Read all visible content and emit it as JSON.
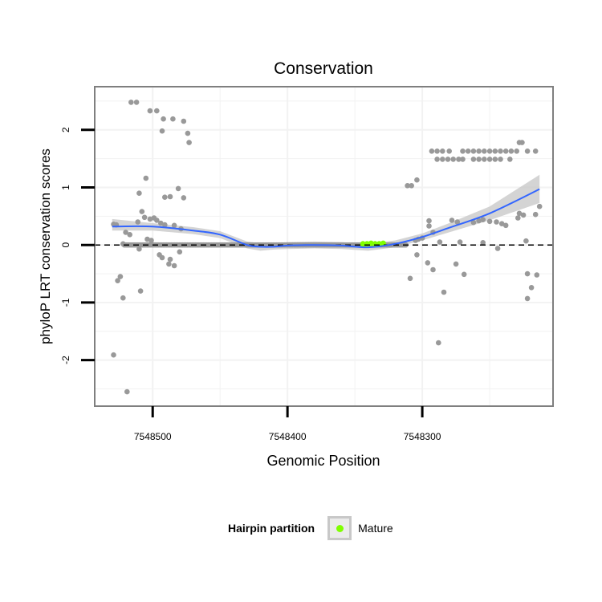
{
  "colors": {
    "points": "#999999",
    "smooth_line": "#3366ff",
    "ribbon": "#c6c6c6",
    "mature": "#7fff00",
    "panel_border": "#7f7f7f",
    "grid": "#f2f2f2"
  },
  "legend": {
    "title": "Hairpin partition",
    "label": "Mature"
  },
  "chart_data": {
    "type": "scatter",
    "title": "Conservation",
    "xlabel": "Genomic Position",
    "ylabel": "phyloP LRT conservation scores",
    "x_reversed": true,
    "xlim": [
      7548543,
      7548203
    ],
    "ylim": [
      -2.8,
      2.75
    ],
    "x_ticks": [
      7548500,
      7548400,
      7548300
    ],
    "x_tick_labels": [
      "7548500",
      "7548400",
      "7548300"
    ],
    "y_ticks": [
      2,
      1,
      0,
      -1,
      -2
    ],
    "y_tick_labels": [
      "2",
      "1",
      "0",
      "-1",
      "-2"
    ],
    "grid": true,
    "reference_line": {
      "y": 0,
      "style": "dashed"
    },
    "series": [
      {
        "name": "scores",
        "points": [
          {
            "x": 7548516,
            "y": 2.48
          },
          {
            "x": 7548512,
            "y": 2.48
          },
          {
            "x": 7548502,
            "y": 2.33
          },
          {
            "x": 7548497,
            "y": 2.33
          },
          {
            "x": 7548492,
            "y": 2.19
          },
          {
            "x": 7548485,
            "y": 2.19
          },
          {
            "x": 7548477,
            "y": 2.15
          },
          {
            "x": 7548493,
            "y": 1.98
          },
          {
            "x": 7548474,
            "y": 1.94
          },
          {
            "x": 7548473,
            "y": 1.78
          },
          {
            "x": 7548505,
            "y": 1.16
          },
          {
            "x": 7548510,
            "y": 0.9
          },
          {
            "x": 7548481,
            "y": 0.98
          },
          {
            "x": 7548491,
            "y": 0.83
          },
          {
            "x": 7548487,
            "y": 0.84
          },
          {
            "x": 7548477,
            "y": 0.82
          },
          {
            "x": 7548508,
            "y": 0.58
          },
          {
            "x": 7548506,
            "y": 0.48
          },
          {
            "x": 7548502,
            "y": 0.45
          },
          {
            "x": 7548499,
            "y": 0.47
          },
          {
            "x": 7548497,
            "y": 0.43
          },
          {
            "x": 7548494,
            "y": 0.38
          },
          {
            "x": 7548491,
            "y": 0.35
          },
          {
            "x": 7548484,
            "y": 0.34
          },
          {
            "x": 7548479,
            "y": 0.28
          },
          {
            "x": 7548511,
            "y": 0.4
          },
          {
            "x": 7548527,
            "y": 0.35
          },
          {
            "x": 7548529,
            "y": 0.36
          },
          {
            "x": 7548520,
            "y": 0.22
          },
          {
            "x": 7548517,
            "y": 0.18
          },
          {
            "x": 7548504,
            "y": 0.1
          },
          {
            "x": 7548501,
            "y": 0.08
          },
          {
            "x": 7548522,
            "y": 0.02
          },
          {
            "x": 7548510,
            "y": -0.07
          },
          {
            "x": 7548495,
            "y": -0.17
          },
          {
            "x": 7548493,
            "y": -0.22
          },
          {
            "x": 7548487,
            "y": -0.25
          },
          {
            "x": 7548484,
            "y": -0.36
          },
          {
            "x": 7548488,
            "y": -0.33
          },
          {
            "x": 7548480,
            "y": -0.12
          },
          {
            "x": 7548524,
            "y": -0.55
          },
          {
            "x": 7548526,
            "y": -0.62
          },
          {
            "x": 7548522,
            "y": -0.92
          },
          {
            "x": 7548509,
            "y": -0.8
          },
          {
            "x": 7548529,
            "y": -1.91
          },
          {
            "x": 7548519,
            "y": -2.55
          },
          {
            "x": 7548311,
            "y": 1.03
          },
          {
            "x": 7548308,
            "y": 1.03
          },
          {
            "x": 7548304,
            "y": 1.13
          },
          {
            "x": 7548293,
            "y": 1.63
          },
          {
            "x": 7548289,
            "y": 1.63
          },
          {
            "x": 7548285,
            "y": 1.63
          },
          {
            "x": 7548280,
            "y": 1.63
          },
          {
            "x": 7548270,
            "y": 1.63
          },
          {
            "x": 7548266,
            "y": 1.63
          },
          {
            "x": 7548262,
            "y": 1.63
          },
          {
            "x": 7548258,
            "y": 1.63
          },
          {
            "x": 7548254,
            "y": 1.63
          },
          {
            "x": 7548250,
            "y": 1.63
          },
          {
            "x": 7548246,
            "y": 1.63
          },
          {
            "x": 7548242,
            "y": 1.63
          },
          {
            "x": 7548238,
            "y": 1.63
          },
          {
            "x": 7548234,
            "y": 1.63
          },
          {
            "x": 7548230,
            "y": 1.63
          },
          {
            "x": 7548222,
            "y": 1.63
          },
          {
            "x": 7548216,
            "y": 1.63
          },
          {
            "x": 7548289,
            "y": 1.49
          },
          {
            "x": 7548285,
            "y": 1.49
          },
          {
            "x": 7548281,
            "y": 1.49
          },
          {
            "x": 7548277,
            "y": 1.49
          },
          {
            "x": 7548273,
            "y": 1.49
          },
          {
            "x": 7548270,
            "y": 1.49
          },
          {
            "x": 7548262,
            "y": 1.49
          },
          {
            "x": 7548258,
            "y": 1.49
          },
          {
            "x": 7548254,
            "y": 1.49
          },
          {
            "x": 7548250,
            "y": 1.49
          },
          {
            "x": 7548246,
            "y": 1.49
          },
          {
            "x": 7548242,
            "y": 1.49
          },
          {
            "x": 7548235,
            "y": 1.49
          },
          {
            "x": 7548228,
            "y": 1.78
          },
          {
            "x": 7548226,
            "y": 1.78
          },
          {
            "x": 7548295,
            "y": 0.42
          },
          {
            "x": 7548278,
            "y": 0.43
          },
          {
            "x": 7548274,
            "y": 0.4
          },
          {
            "x": 7548262,
            "y": 0.39
          },
          {
            "x": 7548258,
            "y": 0.42
          },
          {
            "x": 7548255,
            "y": 0.44
          },
          {
            "x": 7548250,
            "y": 0.41
          },
          {
            "x": 7548245,
            "y": 0.4
          },
          {
            "x": 7548241,
            "y": 0.37
          },
          {
            "x": 7548238,
            "y": 0.34
          },
          {
            "x": 7548228,
            "y": 0.55
          },
          {
            "x": 7548225,
            "y": 0.52
          },
          {
            "x": 7548216,
            "y": 0.53
          },
          {
            "x": 7548213,
            "y": 0.67
          },
          {
            "x": 7548229,
            "y": 0.47
          },
          {
            "x": 7548295,
            "y": 0.33
          },
          {
            "x": 7548292,
            "y": 0.22
          },
          {
            "x": 7548300,
            "y": 0.12
          },
          {
            "x": 7548303,
            "y": 0.1
          },
          {
            "x": 7548305,
            "y": 0.08
          },
          {
            "x": 7548287,
            "y": 0.05
          },
          {
            "x": 7548272,
            "y": 0.05
          },
          {
            "x": 7548255,
            "y": 0.04
          },
          {
            "x": 7548223,
            "y": 0.07
          },
          {
            "x": 7548244,
            "y": -0.06
          },
          {
            "x": 7548304,
            "y": -0.17
          },
          {
            "x": 7548296,
            "y": -0.31
          },
          {
            "x": 7548292,
            "y": -0.43
          },
          {
            "x": 7548275,
            "y": -0.33
          },
          {
            "x": 7548269,
            "y": -0.51
          },
          {
            "x": 7548309,
            "y": -0.58
          },
          {
            "x": 7548284,
            "y": -0.82
          },
          {
            "x": 7548222,
            "y": -0.5
          },
          {
            "x": 7548215,
            "y": -0.52
          },
          {
            "x": 7548219,
            "y": -0.74
          },
          {
            "x": 7548222,
            "y": -0.93
          },
          {
            "x": 7548288,
            "y": -1.7
          }
        ]
      },
      {
        "name": "Mature",
        "points": [
          {
            "x": 7548344,
            "y": 0.02
          },
          {
            "x": 7548341,
            "y": 0.02
          },
          {
            "x": 7548338,
            "y": 0.03
          },
          {
            "x": 7548335,
            "y": 0.02
          },
          {
            "x": 7548332,
            "y": 0.02
          },
          {
            "x": 7548329,
            "y": 0.03
          }
        ]
      }
    ],
    "zero_points": {
      "x_from": 7548521,
      "x_to": 7548312
    },
    "smooth": {
      "x": [
        7548530,
        7548500,
        7548470,
        7548450,
        7548430,
        7548420,
        7548410,
        7548400,
        7548380,
        7548360,
        7548340,
        7548320,
        7548300,
        7548280,
        7548250,
        7548213
      ],
      "y": [
        0.32,
        0.32,
        0.25,
        0.18,
        0.0,
        -0.03,
        -0.03,
        -0.01,
        0.0,
        -0.01,
        -0.04,
        0.02,
        0.14,
        0.3,
        0.55,
        0.97
      ],
      "lower": [
        0.25,
        0.25,
        0.19,
        0.12,
        -0.06,
        -0.1,
        -0.08,
        -0.07,
        -0.06,
        -0.07,
        -0.1,
        -0.04,
        0.08,
        0.22,
        0.43,
        0.73
      ],
      "upper": [
        0.45,
        0.38,
        0.31,
        0.24,
        0.06,
        0.03,
        0.03,
        0.05,
        0.06,
        0.05,
        0.02,
        0.08,
        0.2,
        0.38,
        0.67,
        1.22
      ]
    }
  }
}
